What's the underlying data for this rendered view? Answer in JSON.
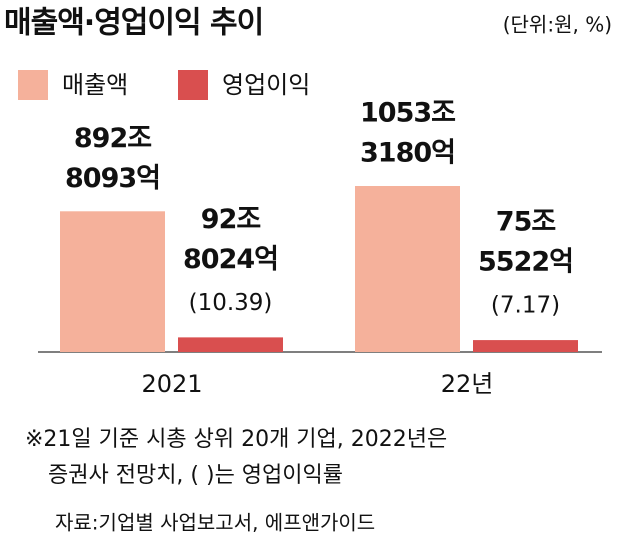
{
  "chart_data": {
    "type": "bar",
    "title": "매출액·영업이익 추이",
    "unit_note": "(단위:원, %)",
    "categories": [
      "2021",
      "22년"
    ],
    "series": [
      {
        "name": "매출액",
        "color": "#f5b19b",
        "values": [
          8928093,
          10533180
        ],
        "value_labels": [
          [
            "892조",
            "8093억"
          ],
          [
            "1053조",
            "3180억"
          ]
        ]
      },
      {
        "name": "영업이익",
        "color": "#d94f4f",
        "values": [
          928024,
          755522
        ],
        "value_labels": [
          [
            "92조",
            "8024억"
          ],
          [
            "75조",
            "5522억"
          ]
        ],
        "margins": [
          10.39,
          7.17
        ],
        "margin_labels": [
          "(10.39)",
          "(7.17)"
        ]
      }
    ],
    "notes": [
      "※21일 기준 시총 상위 20개 기업, 2022년은",
      "증권사 전망치, (    )는 영업이익률"
    ],
    "source": "자료:기업별 사업보고서, 에프앤가이드"
  }
}
